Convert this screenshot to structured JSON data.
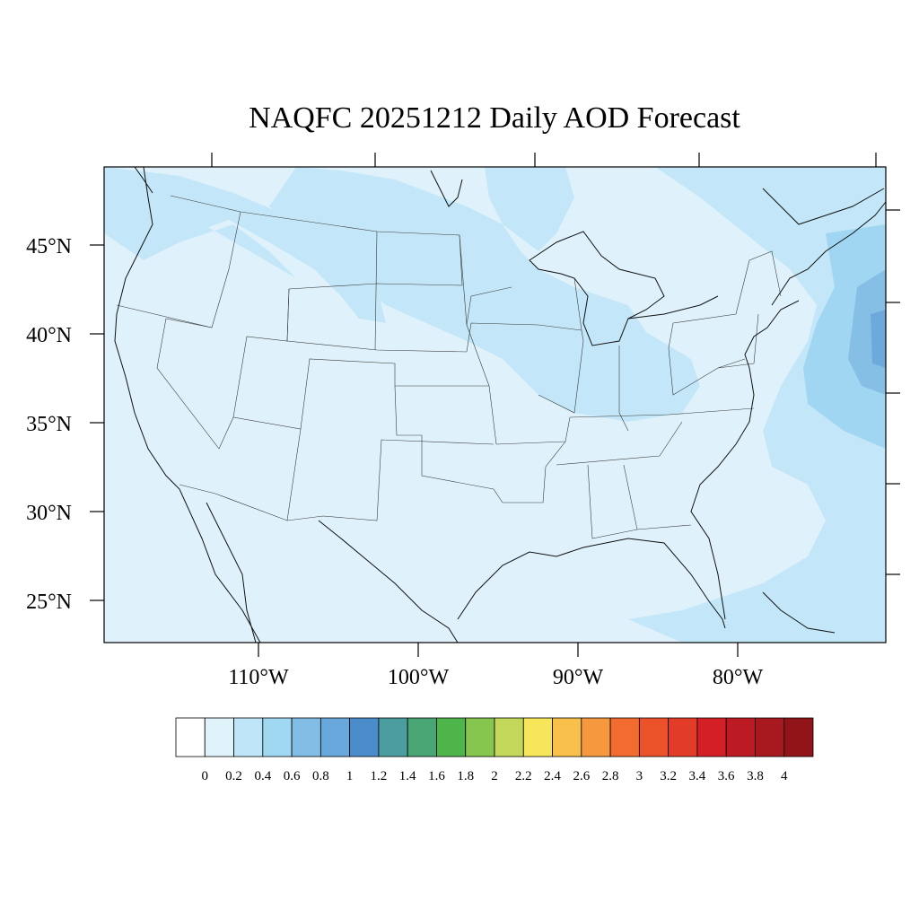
{
  "title": "NAQFC 20251212 Daily AOD Forecast",
  "map": {
    "lat_labels": [
      "45°N",
      "40°N",
      "35°N",
      "30°N",
      "25°N"
    ],
    "lon_labels": [
      "110°W",
      "100°W",
      "90°W",
      "80°W"
    ],
    "background_color": "#dff2fb"
  },
  "colorbar": {
    "levels": [
      "0",
      "0.2",
      "0.4",
      "0.6",
      "0.8",
      "1",
      "1.2",
      "1.4",
      "1.6",
      "1.8",
      "2",
      "2.2",
      "2.4",
      "2.6",
      "2.8",
      "3",
      "3.2",
      "3.4",
      "3.6",
      "3.8",
      "4"
    ],
    "colors": [
      "#ffffff",
      "#e0f3fb",
      "#bfe6f8",
      "#a0d8f2",
      "#82bde6",
      "#69a8dc",
      "#4b8ccb",
      "#4b9da0",
      "#49a574",
      "#4db54a",
      "#86c54e",
      "#c3d85b",
      "#f7e65a",
      "#f8c04a",
      "#f6993e",
      "#f36c2f",
      "#ec5229",
      "#e23b27",
      "#d41f27",
      "#bd1b23",
      "#a8181f",
      "#901418"
    ]
  }
}
